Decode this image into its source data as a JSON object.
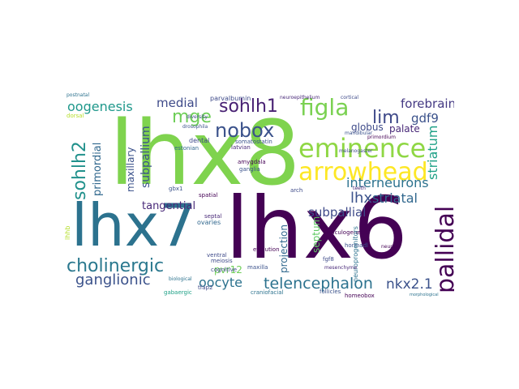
{
  "words": [
    {
      "text": "lhx8",
      "color": "#7fd34e",
      "rotated": false
    },
    {
      "text": "lhx7",
      "color": "#2c728e",
      "rotated": false
    },
    {
      "text": "lhx6",
      "color": "#440154",
      "rotated": false
    },
    {
      "text": "eminence",
      "color": "#8fd744",
      "rotated": false
    },
    {
      "text": "arrowhead",
      "color": "#fde725",
      "rotated": false
    },
    {
      "text": "cholinergic",
      "color": "#2a788e",
      "rotated": false
    },
    {
      "text": "pallidal",
      "color": "#440154",
      "rotated": true
    },
    {
      "text": "sohlh1",
      "color": "#482173",
      "rotated": false
    },
    {
      "text": "figla",
      "color": "#7ad151",
      "rotated": false
    },
    {
      "text": "nobox",
      "color": "#3b528b",
      "rotated": false
    },
    {
      "text": "mge",
      "color": "#6ece58",
      "rotated": false
    },
    {
      "text": "sohlh2",
      "color": "#21918c",
      "rotated": true
    },
    {
      "text": "telencephalon",
      "color": "#2c728e",
      "rotated": false
    },
    {
      "text": "ganglionic",
      "color": "#3b528b",
      "rotated": false
    },
    {
      "text": "oogenesis",
      "color": "#1f988b",
      "rotated": false
    },
    {
      "text": "lim",
      "color": "#3e4989",
      "rotated": false
    },
    {
      "text": "forebrain",
      "color": "#443983",
      "rotated": false
    },
    {
      "text": "interneurons",
      "color": "#2c728e",
      "rotated": false
    },
    {
      "text": "striatal",
      "color": "#31688e",
      "rotated": false
    },
    {
      "text": "lhx",
      "color": "#3b528b",
      "rotated": false
    },
    {
      "text": "subpallial",
      "color": "#3e4a89",
      "rotated": false
    },
    {
      "text": "oocyte",
      "color": "#2c728e",
      "rotated": false
    },
    {
      "text": "nkx2.1",
      "color": "#3b528b",
      "rotated": false
    },
    {
      "text": "striatum",
      "color": "#1fa187",
      "rotated": true
    },
    {
      "text": "gdf9",
      "color": "#3b528b",
      "rotated": false
    },
    {
      "text": "medial",
      "color": "#3e4a89",
      "rotated": false
    },
    {
      "text": "subpallium",
      "color": "#3b528b",
      "rotated": true
    },
    {
      "text": "primordial",
      "color": "#31688e",
      "rotated": true
    },
    {
      "text": "tangential",
      "color": "#482878",
      "rotated": false
    },
    {
      "text": "globus",
      "color": "#3e4a89",
      "rotated": false
    },
    {
      "text": "palate",
      "color": "#482878",
      "rotated": false
    },
    {
      "text": "maxillary",
      "color": "#3b528b",
      "rotated": true
    },
    {
      "text": "septum",
      "color": "#5ec962",
      "rotated": true
    },
    {
      "text": "projection",
      "color": "#31688e",
      "rotated": true
    },
    {
      "text": "pvr12",
      "color": "#6ece58",
      "rotated": false
    },
    {
      "text": "lhhb",
      "color": "#b5de2b",
      "rotated": true
    },
    {
      "text": "parvalbumin",
      "color": "#3e4a89",
      "rotated": false
    },
    {
      "text": "dental",
      "color": "#3e4a89",
      "rotated": false
    },
    {
      "text": "ovaries",
      "color": "#31688e",
      "rotated": false
    },
    {
      "text": "amygdala",
      "color": "#440154",
      "rotated": false
    },
    {
      "text": "ganglia",
      "color": "#3b528b",
      "rotated": false
    },
    {
      "text": "estonian",
      "color": "#31688e",
      "rotated": false
    },
    {
      "text": "latvian",
      "color": "#482878",
      "rotated": false
    },
    {
      "text": "somatostatin",
      "color": "#3b528b",
      "rotated": false
    },
    {
      "text": "spatial",
      "color": "#440154",
      "rotated": false
    },
    {
      "text": "septal",
      "color": "#482878",
      "rotated": false
    },
    {
      "text": "ventral",
      "color": "#3e4a89",
      "rotated": false
    },
    {
      "text": "meiosis",
      "color": "#3e4a89",
      "rotated": false
    },
    {
      "text": "evolution",
      "color": "#440154",
      "rotated": false
    },
    {
      "text": "arch",
      "color": "#3e4a89",
      "rotated": false
    },
    {
      "text": "folliculogenesis",
      "color": "#440154",
      "rotated": false
    },
    {
      "text": "follicles",
      "color": "#3b528b",
      "rotated": false
    },
    {
      "text": "craniofacial",
      "color": "#2c728e",
      "rotated": false
    },
    {
      "text": "homeobox",
      "color": "#440154",
      "rotated": false
    },
    {
      "text": "tfap2",
      "color": "#3e4a89",
      "rotated": false
    },
    {
      "text": "gbx1",
      "color": "#3b528b",
      "rotated": false
    },
    {
      "text": "neuroepithelium",
      "color": "#482878",
      "rotated": false
    },
    {
      "text": "cortical",
      "color": "#3e4a89",
      "rotated": false
    },
    {
      "text": "primordium",
      "color": "#440154",
      "rotated": false
    },
    {
      "text": "mandibular",
      "color": "#3b528b",
      "rotated": false
    },
    {
      "text": "melanogaster",
      "color": "#3e4a89",
      "rotated": false
    },
    {
      "text": "teeth",
      "color": "#482878",
      "rotated": false
    },
    {
      "text": "hormadl",
      "color": "#3b528b",
      "rotated": false
    },
    {
      "text": "neuroprogenitors",
      "color": "#2c728e",
      "rotated": false
    },
    {
      "text": "morphological",
      "color": "#2c728e",
      "rotated": false
    },
    {
      "text": "cognitive",
      "color": "#3e4a89",
      "rotated": false
    },
    {
      "text": "dorsal",
      "color": "#b5de2b",
      "rotated": false
    },
    {
      "text": "maxilla",
      "color": "#3b528b",
      "rotated": false
    },
    {
      "text": "neural",
      "color": "#440154",
      "rotated": false
    },
    {
      "text": "fgf8",
      "color": "#3e4a89",
      "rotated": false
    },
    {
      "text": "gabaergic",
      "color": "#1fa187",
      "rotated": false
    },
    {
      "text": "diversity",
      "color": "#3e4a89",
      "rotated": false
    },
    {
      "text": "drosophila",
      "color": "#3b528b",
      "rotated": false
    },
    {
      "text": "postnatal",
      "color": "#2c728e",
      "rotated": false
    },
    {
      "text": "mesenchyme",
      "color": "#482878",
      "rotated": false
    },
    {
      "text": "biological",
      "color": "#2c728e",
      "rotated": false
    }
  ]
}
